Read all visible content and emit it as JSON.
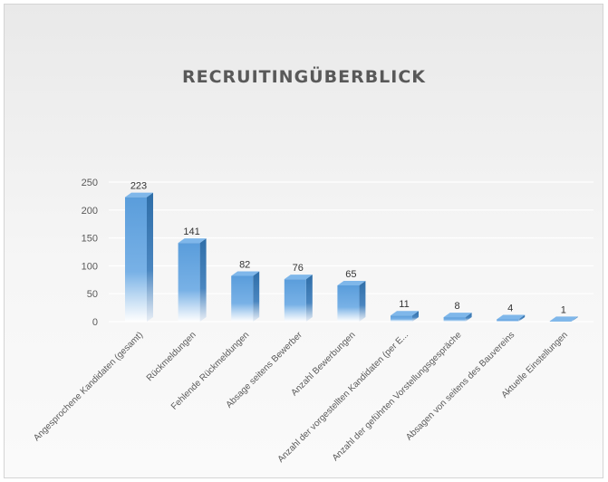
{
  "chart_data": {
    "type": "bar",
    "title": "RECRUITINGÜBERBLICK",
    "xlabel": "",
    "ylabel": "",
    "ylim": [
      0,
      250
    ],
    "yticks": [
      0,
      50,
      100,
      150,
      200,
      250
    ],
    "grid": true,
    "legend": "none",
    "style": "3d-column",
    "categories": [
      "Angesprochene Kandidaten (gesamt)",
      "Rückmeldungen",
      "Fehlende Rückmeldungen",
      "Absage seitens Bewerber",
      "Anzahl Bewerbungen",
      "Anzahl der vorgestellten Kandidaten (per E...",
      "Anzahl der geführten Vorstellungsgespräche",
      "Absagen von seitens des Bauvereins",
      "Aktuelle Einstellungen"
    ],
    "values": [
      223,
      141,
      82,
      76,
      65,
      11,
      8,
      4,
      1
    ],
    "colors": {
      "bar_front": "#5a9ddb",
      "bar_side": "#2f6ea8",
      "bar_top": "#7fb7ea"
    }
  }
}
